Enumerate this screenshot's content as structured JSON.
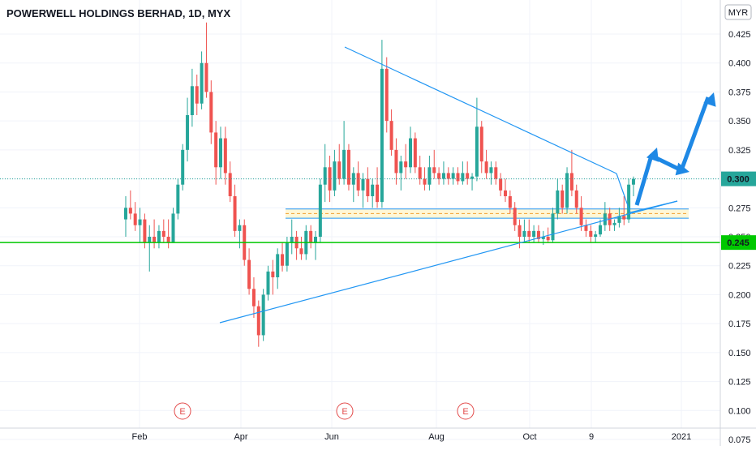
{
  "chart_data": {
    "type": "candlestick",
    "title": "POWERWELL HOLDINGS BERHAD, 1D, MYX",
    "currency_badge": "MYR",
    "x_tick_labels": [
      "Feb",
      "Apr",
      "Jun",
      "Aug",
      "Oct",
      "9",
      "2021"
    ],
    "y_tick_labels": [
      "0.425",
      "0.400",
      "0.375",
      "0.350",
      "0.325",
      "0.300",
      "0.275",
      "0.250",
      "0.225",
      "0.200",
      "0.175",
      "0.150",
      "0.125",
      "0.100",
      "0.075"
    ],
    "ylim": [
      0.075,
      0.44
    ],
    "grid": true,
    "current_price": "0.300",
    "support_line": "0.245",
    "earnings_markers": [
      "E",
      "E",
      "E"
    ],
    "colors": {
      "up": "#26a69a",
      "down": "#ef5350",
      "trend": "#2196f3",
      "support": "#00c800",
      "arrow": "#1e88e5",
      "zone": "#fff3c4"
    },
    "candles": [
      {
        "o": 0.265,
        "h": 0.285,
        "l": 0.25,
        "c": 0.275
      },
      {
        "o": 0.275,
        "h": 0.29,
        "l": 0.265,
        "c": 0.27
      },
      {
        "o": 0.27,
        "h": 0.28,
        "l": 0.255,
        "c": 0.26
      },
      {
        "o": 0.26,
        "h": 0.275,
        "l": 0.245,
        "c": 0.265
      },
      {
        "o": 0.265,
        "h": 0.27,
        "l": 0.24,
        "c": 0.245
      },
      {
        "o": 0.245,
        "h": 0.26,
        "l": 0.22,
        "c": 0.25
      },
      {
        "o": 0.25,
        "h": 0.265,
        "l": 0.24,
        "c": 0.245
      },
      {
        "o": 0.245,
        "h": 0.26,
        "l": 0.24,
        "c": 0.255
      },
      {
        "o": 0.255,
        "h": 0.265,
        "l": 0.245,
        "c": 0.25
      },
      {
        "o": 0.25,
        "h": 0.265,
        "l": 0.24,
        "c": 0.245
      },
      {
        "o": 0.245,
        "h": 0.275,
        "l": 0.245,
        "c": 0.27
      },
      {
        "o": 0.27,
        "h": 0.3,
        "l": 0.265,
        "c": 0.295
      },
      {
        "o": 0.295,
        "h": 0.33,
        "l": 0.29,
        "c": 0.325
      },
      {
        "o": 0.325,
        "h": 0.37,
        "l": 0.315,
        "c": 0.355
      },
      {
        "o": 0.355,
        "h": 0.395,
        "l": 0.345,
        "c": 0.38
      },
      {
        "o": 0.38,
        "h": 0.39,
        "l": 0.355,
        "c": 0.365
      },
      {
        "o": 0.365,
        "h": 0.41,
        "l": 0.36,
        "c": 0.4
      },
      {
        "o": 0.4,
        "h": 0.435,
        "l": 0.37,
        "c": 0.375
      },
      {
        "o": 0.375,
        "h": 0.385,
        "l": 0.33,
        "c": 0.34
      },
      {
        "o": 0.34,
        "h": 0.35,
        "l": 0.295,
        "c": 0.31
      },
      {
        "o": 0.31,
        "h": 0.345,
        "l": 0.3,
        "c": 0.335
      },
      {
        "o": 0.335,
        "h": 0.345,
        "l": 0.295,
        "c": 0.305
      },
      {
        "o": 0.305,
        "h": 0.315,
        "l": 0.28,
        "c": 0.285
      },
      {
        "o": 0.285,
        "h": 0.295,
        "l": 0.25,
        "c": 0.255
      },
      {
        "o": 0.255,
        "h": 0.265,
        "l": 0.24,
        "c": 0.26
      },
      {
        "o": 0.26,
        "h": 0.265,
        "l": 0.225,
        "c": 0.23
      },
      {
        "o": 0.23,
        "h": 0.24,
        "l": 0.2,
        "c": 0.205
      },
      {
        "o": 0.205,
        "h": 0.215,
        "l": 0.18,
        "c": 0.19
      },
      {
        "o": 0.19,
        "h": 0.195,
        "l": 0.155,
        "c": 0.165
      },
      {
        "o": 0.165,
        "h": 0.205,
        "l": 0.16,
        "c": 0.2
      },
      {
        "o": 0.2,
        "h": 0.225,
        "l": 0.195,
        "c": 0.22
      },
      {
        "o": 0.22,
        "h": 0.23,
        "l": 0.2,
        "c": 0.215
      },
      {
        "o": 0.215,
        "h": 0.24,
        "l": 0.205,
        "c": 0.235
      },
      {
        "o": 0.235,
        "h": 0.245,
        "l": 0.22,
        "c": 0.225
      },
      {
        "o": 0.225,
        "h": 0.25,
        "l": 0.22,
        "c": 0.245
      },
      {
        "o": 0.245,
        "h": 0.265,
        "l": 0.235,
        "c": 0.25
      },
      {
        "o": 0.25,
        "h": 0.255,
        "l": 0.23,
        "c": 0.24
      },
      {
        "o": 0.24,
        "h": 0.25,
        "l": 0.23,
        "c": 0.235
      },
      {
        "o": 0.235,
        "h": 0.26,
        "l": 0.23,
        "c": 0.255
      },
      {
        "o": 0.255,
        "h": 0.26,
        "l": 0.24,
        "c": 0.245
      },
      {
        "o": 0.245,
        "h": 0.255,
        "l": 0.23,
        "c": 0.25
      },
      {
        "o": 0.25,
        "h": 0.3,
        "l": 0.245,
        "c": 0.295
      },
      {
        "o": 0.295,
        "h": 0.33,
        "l": 0.28,
        "c": 0.31
      },
      {
        "o": 0.31,
        "h": 0.32,
        "l": 0.28,
        "c": 0.29
      },
      {
        "o": 0.29,
        "h": 0.325,
        "l": 0.285,
        "c": 0.315
      },
      {
        "o": 0.315,
        "h": 0.33,
        "l": 0.295,
        "c": 0.3
      },
      {
        "o": 0.3,
        "h": 0.35,
        "l": 0.295,
        "c": 0.325
      },
      {
        "o": 0.325,
        "h": 0.33,
        "l": 0.29,
        "c": 0.295
      },
      {
        "o": 0.295,
        "h": 0.31,
        "l": 0.28,
        "c": 0.305
      },
      {
        "o": 0.305,
        "h": 0.315,
        "l": 0.285,
        "c": 0.29
      },
      {
        "o": 0.29,
        "h": 0.305,
        "l": 0.275,
        "c": 0.3
      },
      {
        "o": 0.3,
        "h": 0.31,
        "l": 0.28,
        "c": 0.285
      },
      {
        "o": 0.285,
        "h": 0.3,
        "l": 0.275,
        "c": 0.295
      },
      {
        "o": 0.295,
        "h": 0.31,
        "l": 0.275,
        "c": 0.28
      },
      {
        "o": 0.28,
        "h": 0.42,
        "l": 0.275,
        "c": 0.395
      },
      {
        "o": 0.395,
        "h": 0.405,
        "l": 0.34,
        "c": 0.35
      },
      {
        "o": 0.35,
        "h": 0.36,
        "l": 0.32,
        "c": 0.325
      },
      {
        "o": 0.325,
        "h": 0.335,
        "l": 0.295,
        "c": 0.305
      },
      {
        "o": 0.305,
        "h": 0.32,
        "l": 0.29,
        "c": 0.315
      },
      {
        "o": 0.315,
        "h": 0.33,
        "l": 0.3,
        "c": 0.31
      },
      {
        "o": 0.31,
        "h": 0.345,
        "l": 0.305,
        "c": 0.335
      },
      {
        "o": 0.335,
        "h": 0.34,
        "l": 0.305,
        "c": 0.31
      },
      {
        "o": 0.31,
        "h": 0.32,
        "l": 0.295,
        "c": 0.3
      },
      {
        "o": 0.3,
        "h": 0.31,
        "l": 0.29,
        "c": 0.295
      },
      {
        "o": 0.295,
        "h": 0.32,
        "l": 0.29,
        "c": 0.31
      },
      {
        "o": 0.31,
        "h": 0.325,
        "l": 0.3,
        "c": 0.305
      },
      {
        "o": 0.305,
        "h": 0.31,
        "l": 0.295,
        "c": 0.3
      },
      {
        "o": 0.3,
        "h": 0.315,
        "l": 0.295,
        "c": 0.305
      },
      {
        "o": 0.305,
        "h": 0.31,
        "l": 0.295,
        "c": 0.3
      },
      {
        "o": 0.3,
        "h": 0.31,
        "l": 0.295,
        "c": 0.305
      },
      {
        "o": 0.305,
        "h": 0.31,
        "l": 0.295,
        "c": 0.298
      },
      {
        "o": 0.298,
        "h": 0.315,
        "l": 0.295,
        "c": 0.305
      },
      {
        "o": 0.305,
        "h": 0.315,
        "l": 0.295,
        "c": 0.3
      },
      {
        "o": 0.3,
        "h": 0.305,
        "l": 0.29,
        "c": 0.302
      },
      {
        "o": 0.302,
        "h": 0.37,
        "l": 0.298,
        "c": 0.345
      },
      {
        "o": 0.345,
        "h": 0.35,
        "l": 0.305,
        "c": 0.315
      },
      {
        "o": 0.315,
        "h": 0.325,
        "l": 0.3,
        "c": 0.305
      },
      {
        "o": 0.305,
        "h": 0.315,
        "l": 0.295,
        "c": 0.31
      },
      {
        "o": 0.31,
        "h": 0.315,
        "l": 0.295,
        "c": 0.3
      },
      {
        "o": 0.3,
        "h": 0.305,
        "l": 0.285,
        "c": 0.29
      },
      {
        "o": 0.29,
        "h": 0.3,
        "l": 0.28,
        "c": 0.285
      },
      {
        "o": 0.285,
        "h": 0.29,
        "l": 0.27,
        "c": 0.275
      },
      {
        "o": 0.275,
        "h": 0.28,
        "l": 0.255,
        "c": 0.26
      },
      {
        "o": 0.26,
        "h": 0.265,
        "l": 0.24,
        "c": 0.25
      },
      {
        "o": 0.25,
        "h": 0.265,
        "l": 0.245,
        "c": 0.255
      },
      {
        "o": 0.255,
        "h": 0.265,
        "l": 0.245,
        "c": 0.25
      },
      {
        "o": 0.25,
        "h": 0.26,
        "l": 0.245,
        "c": 0.255
      },
      {
        "o": 0.255,
        "h": 0.26,
        "l": 0.245,
        "c": 0.248
      },
      {
        "o": 0.248,
        "h": 0.255,
        "l": 0.243,
        "c": 0.25
      },
      {
        "o": 0.25,
        "h": 0.258,
        "l": 0.245,
        "c": 0.247
      },
      {
        "o": 0.247,
        "h": 0.275,
        "l": 0.245,
        "c": 0.27
      },
      {
        "o": 0.27,
        "h": 0.3,
        "l": 0.265,
        "c": 0.29
      },
      {
        "o": 0.29,
        "h": 0.295,
        "l": 0.27,
        "c": 0.275
      },
      {
        "o": 0.275,
        "h": 0.31,
        "l": 0.27,
        "c": 0.305
      },
      {
        "o": 0.305,
        "h": 0.325,
        "l": 0.285,
        "c": 0.29
      },
      {
        "o": 0.29,
        "h": 0.295,
        "l": 0.27,
        "c": 0.275
      },
      {
        "o": 0.275,
        "h": 0.285,
        "l": 0.255,
        "c": 0.26
      },
      {
        "o": 0.26,
        "h": 0.265,
        "l": 0.25,
        "c": 0.255
      },
      {
        "o": 0.255,
        "h": 0.26,
        "l": 0.245,
        "c": 0.25
      },
      {
        "o": 0.25,
        "h": 0.255,
        "l": 0.245,
        "c": 0.252
      },
      {
        "o": 0.252,
        "h": 0.265,
        "l": 0.25,
        "c": 0.26
      },
      {
        "o": 0.26,
        "h": 0.28,
        "l": 0.255,
        "c": 0.27
      },
      {
        "o": 0.27,
        "h": 0.275,
        "l": 0.255,
        "c": 0.26
      },
      {
        "o": 0.26,
        "h": 0.265,
        "l": 0.255,
        "c": 0.262
      },
      {
        "o": 0.262,
        "h": 0.275,
        "l": 0.258,
        "c": 0.268
      },
      {
        "o": 0.268,
        "h": 0.285,
        "l": 0.26,
        "c": 0.265
      },
      {
        "o": 0.265,
        "h": 0.3,
        "l": 0.262,
        "c": 0.295
      },
      {
        "o": 0.295,
        "h": 0.302,
        "l": 0.285,
        "c": 0.3
      }
    ]
  }
}
